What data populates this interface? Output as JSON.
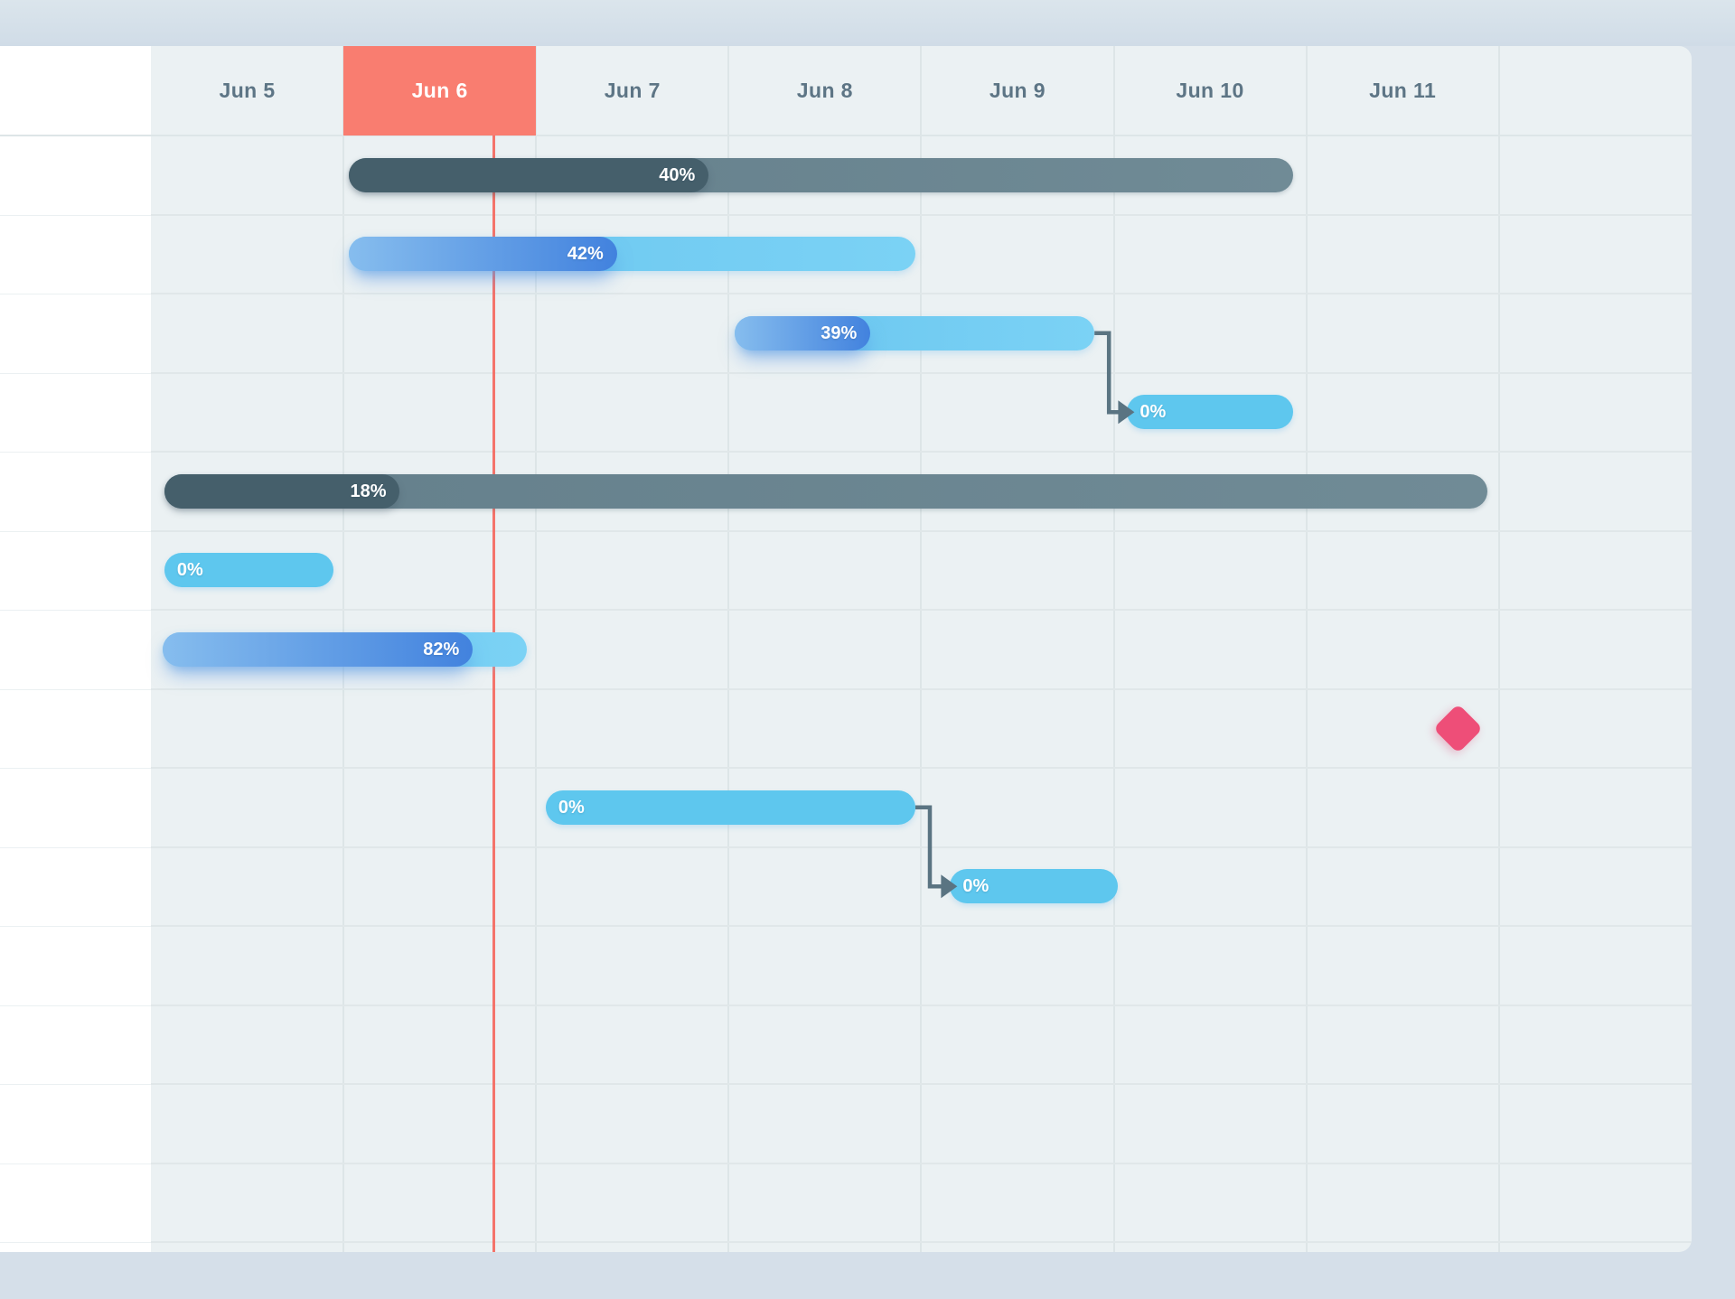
{
  "chart_data": {
    "type": "gantt",
    "title": "",
    "timeline": {
      "days": [
        "Jun 5",
        "Jun 6",
        "Jun 7",
        "Jun 8",
        "Jun 9",
        "Jun 10",
        "Jun 11",
        ""
      ],
      "today": "Jun 6",
      "today_index": 1,
      "now_day_fraction": 1.78
    },
    "tasks": [
      {
        "id": "t1",
        "row": 1,
        "style": "dark",
        "start_day": 1.03,
        "end_day": 5.93,
        "percent": 40,
        "label": "40%",
        "fill_ratio": 0.381
      },
      {
        "id": "t2",
        "row": 2,
        "style": "progress",
        "start_day": 1.03,
        "end_day": 3.97,
        "percent": 42,
        "label": "42%",
        "fill_ratio": 0.473
      },
      {
        "id": "t3",
        "row": 3,
        "style": "progress",
        "start_day": 3.03,
        "end_day": 4.9,
        "percent": 39,
        "label": "39%",
        "fill_ratio": 0.378
      },
      {
        "id": "t4",
        "row": 4,
        "style": "flat",
        "start_day": 5.07,
        "end_day": 5.93,
        "percent": 0,
        "label": "0%"
      },
      {
        "id": "t5",
        "row": 5,
        "style": "dark",
        "start_day": 0.07,
        "end_day": 6.94,
        "percent": 18,
        "label": "18%",
        "fill_ratio": 0.178
      },
      {
        "id": "t6",
        "row": 6,
        "style": "flat",
        "start_day": 0.07,
        "end_day": 0.95,
        "percent": 0,
        "label": "0%"
      },
      {
        "id": "t7",
        "row": 7,
        "style": "progress",
        "start_day": 0.06,
        "end_day": 1.95,
        "percent": 82,
        "label": "82%",
        "fill_ratio": 0.853
      },
      {
        "id": "m1",
        "row": 8,
        "style": "milestone",
        "day": 6.79
      },
      {
        "id": "t9",
        "row": 9,
        "style": "flat",
        "start_day": 2.05,
        "end_day": 3.97,
        "percent": 0,
        "label": "0%"
      },
      {
        "id": "t10",
        "row": 10,
        "style": "flat",
        "start_day": 4.15,
        "end_day": 5.02,
        "percent": 0,
        "label": "0%"
      }
    ],
    "dependencies": [
      {
        "from": "t3",
        "to": "t4"
      },
      {
        "from": "t9",
        "to": "t10"
      }
    ],
    "rows_total": 14,
    "legend": null,
    "grid": true
  },
  "colors": {
    "frame": "#d5dfe9",
    "panel_bg": "#ebf1f3",
    "left_col": "#ffffff",
    "grid_v": "#dde5e7",
    "grid_h": "#e0e7e9",
    "header_text": "#5d7585",
    "today_bg": "#f97d70",
    "today_text": "#ffffff",
    "now_line": "#f4695f",
    "dark_fill": "#455f6b",
    "dark_rest": "#67828e",
    "blue_fill_from": "#86bdee",
    "blue_fill_to": "#4282de",
    "blue_base": "#6fcaf1",
    "bar_flat": "#5ec7ee",
    "connector": "#5a7482",
    "milestone": "#ee4e78",
    "label_text": "#ffffff"
  }
}
